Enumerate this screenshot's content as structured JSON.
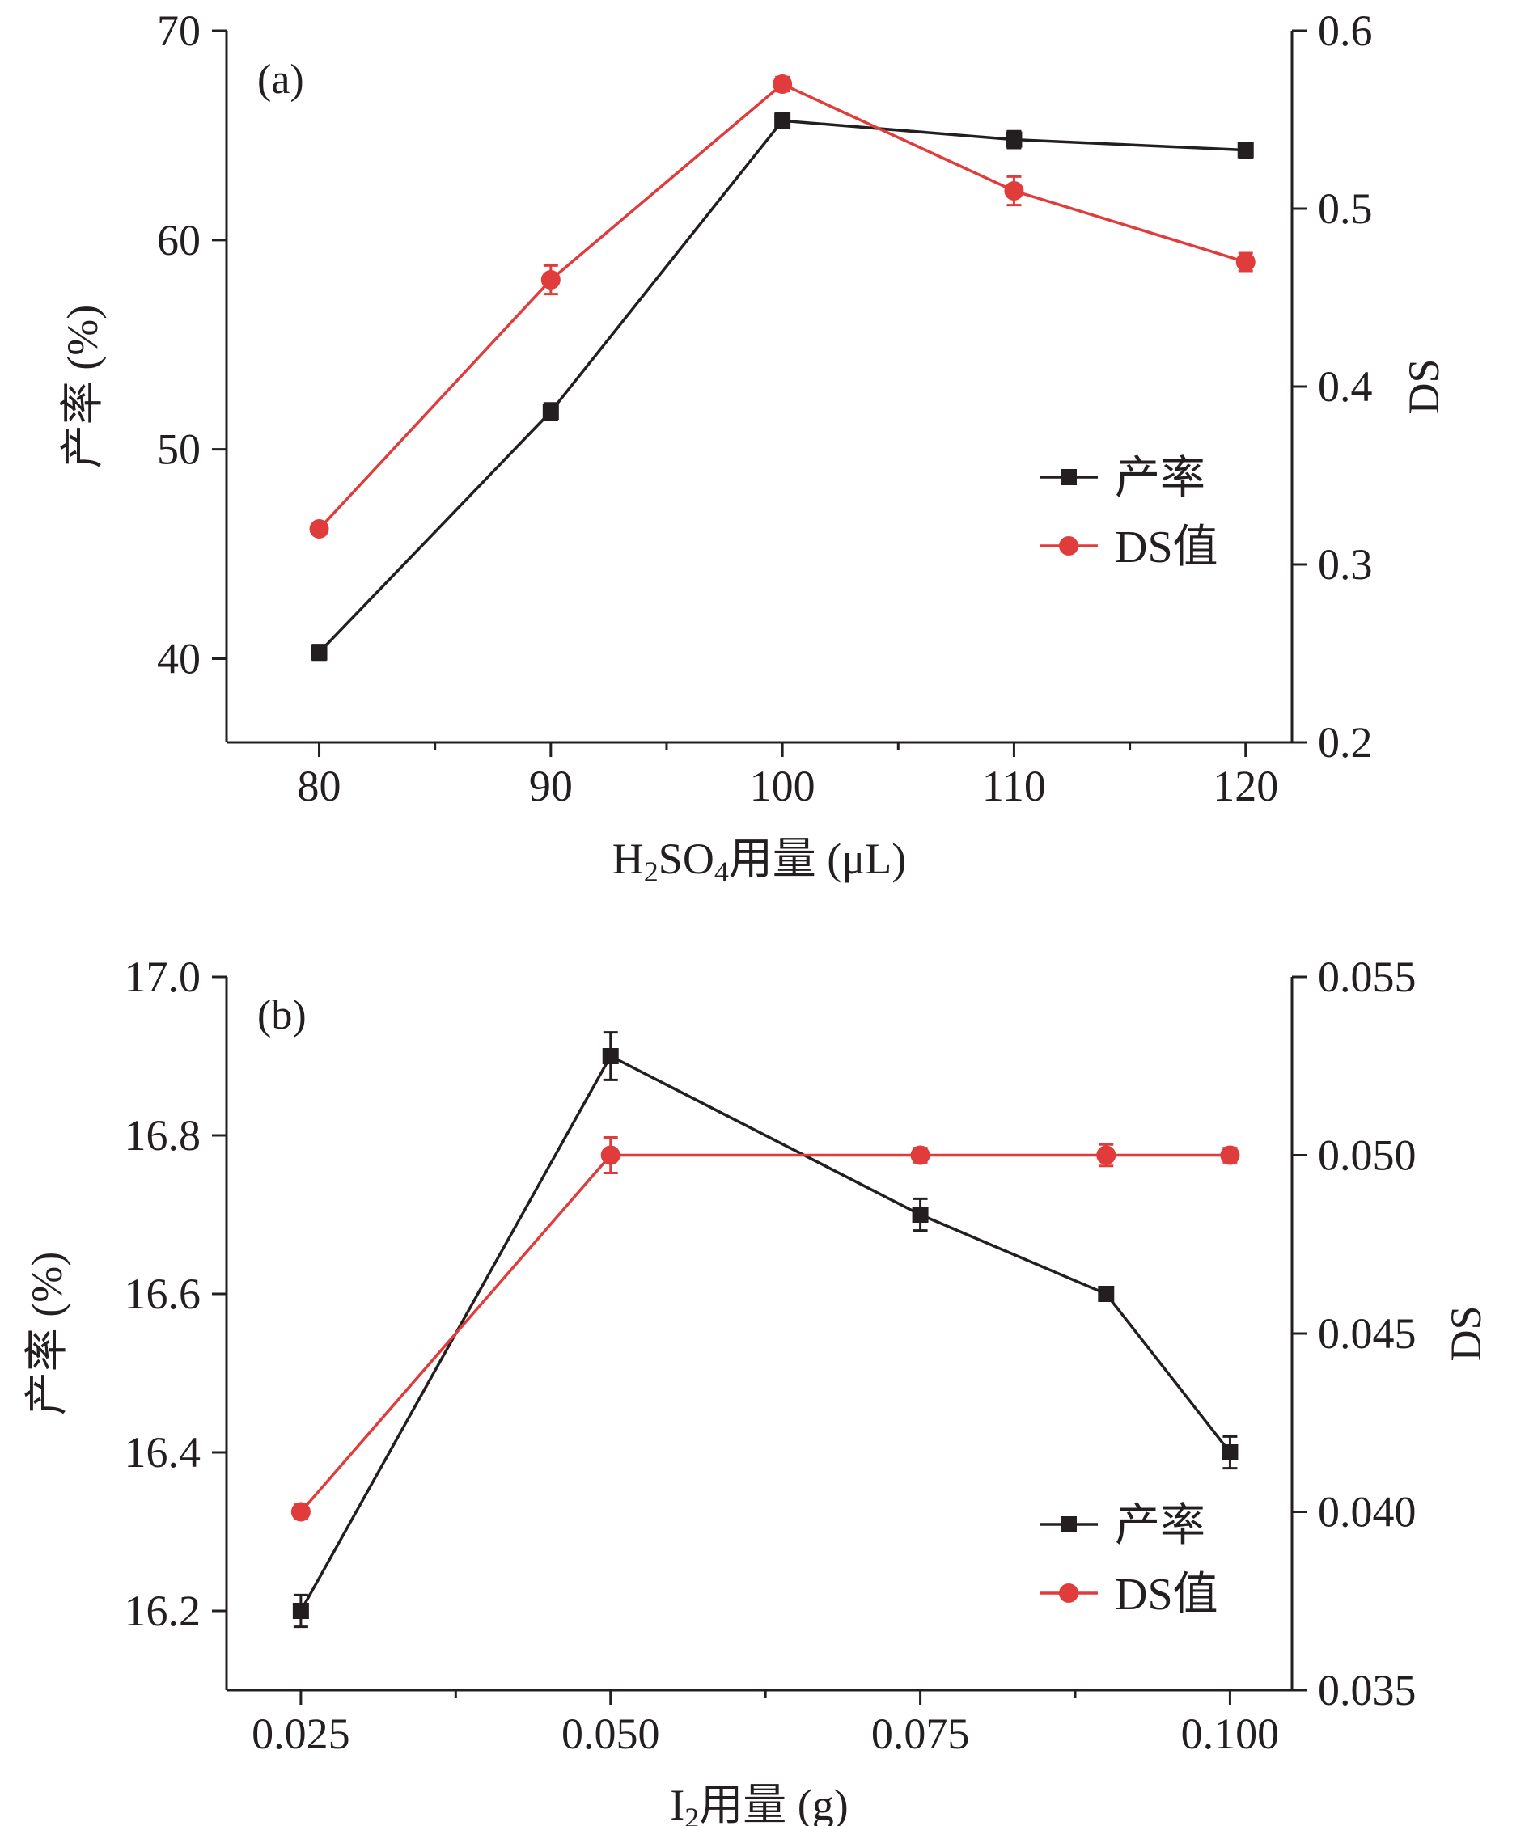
{
  "colors": {
    "yield": "#231f20",
    "ds": "#e03c3c",
    "axis": "#231f20"
  },
  "chart_data": [
    {
      "type": "line",
      "panel_label": "(a)",
      "xlabel": {
        "main": "H",
        "sub1": "2",
        "mid": "SO",
        "sub2": "4",
        "tail": "用量 (μL)"
      },
      "ylabel_left": "产率 (%)",
      "ylabel_right": "DS",
      "x": [
        80,
        90,
        100,
        110,
        120
      ],
      "xlim": [
        76,
        122
      ],
      "xticks": [
        "80",
        "90",
        "100",
        "110",
        "120"
      ],
      "xtick_values": [
        80,
        90,
        100,
        110,
        120
      ],
      "minor_xticks": [
        85,
        95,
        105,
        115
      ],
      "ylim_left": [
        36,
        70
      ],
      "yticks_left": [
        "40",
        "50",
        "60",
        "70"
      ],
      "ytick_values_left": [
        40,
        50,
        60,
        70
      ],
      "ylim_right": [
        0.2,
        0.6
      ],
      "yticks_right": [
        "0.2",
        "0.3",
        "0.4",
        "0.5",
        "0.6"
      ],
      "ytick_values_right": [
        0.2,
        0.3,
        0.4,
        0.5,
        0.6
      ],
      "legend_position": "center-right",
      "series": [
        {
          "name": "产率",
          "axis": "left",
          "marker": "square",
          "values": [
            40.3,
            51.8,
            65.7,
            64.8,
            64.3
          ],
          "errors": [
            0.35,
            0.4,
            0.35,
            0.4,
            0.35
          ]
        },
        {
          "name": "DS值",
          "axis": "right",
          "marker": "circle",
          "values": [
            0.32,
            0.46,
            0.57,
            0.51,
            0.47
          ],
          "errors": [
            0.003,
            0.008,
            0.004,
            0.008,
            0.005
          ]
        }
      ]
    },
    {
      "type": "line",
      "panel_label": "(b)",
      "xlabel": {
        "main": "I",
        "sub1": "2",
        "mid": "",
        "sub2": "",
        "tail": "用量 (g)"
      },
      "ylabel_left": "产率 (%)",
      "ylabel_right": "DS",
      "x": [
        0.025,
        0.05,
        0.075,
        0.09,
        0.1
      ],
      "xlim": [
        0.019,
        0.105
      ],
      "xticks": [
        "0.025",
        "0.050",
        "0.075",
        "0.100"
      ],
      "xtick_values": [
        0.025,
        0.05,
        0.075,
        0.1
      ],
      "minor_xticks": [
        0.0375,
        0.0625,
        0.0875
      ],
      "ylim_left": [
        16.1,
        17.0
      ],
      "yticks_left": [
        "16.2",
        "16.4",
        "16.6",
        "16.8",
        "17.0"
      ],
      "ytick_values_left": [
        16.2,
        16.4,
        16.6,
        16.8,
        17.0
      ],
      "ylim_right": [
        0.035,
        0.055
      ],
      "yticks_right": [
        "0.035",
        "0.040",
        "0.045",
        "0.050",
        "0.055"
      ],
      "ytick_values_right": [
        0.035,
        0.04,
        0.045,
        0.05,
        0.055
      ],
      "legend_position": "lower-right",
      "series": [
        {
          "name": "产率",
          "axis": "left",
          "marker": "square",
          "values": [
            16.2,
            16.9,
            16.7,
            16.6,
            16.4
          ],
          "errors": [
            0.02,
            0.03,
            0.02,
            0.008,
            0.02
          ]
        },
        {
          "name": "DS值",
          "axis": "right",
          "marker": "circle",
          "values": [
            0.04,
            0.05,
            0.05,
            0.05,
            0.05
          ],
          "errors": [
            0.0002,
            0.0005,
            0.0002,
            0.0003,
            0.0002
          ]
        }
      ]
    }
  ]
}
